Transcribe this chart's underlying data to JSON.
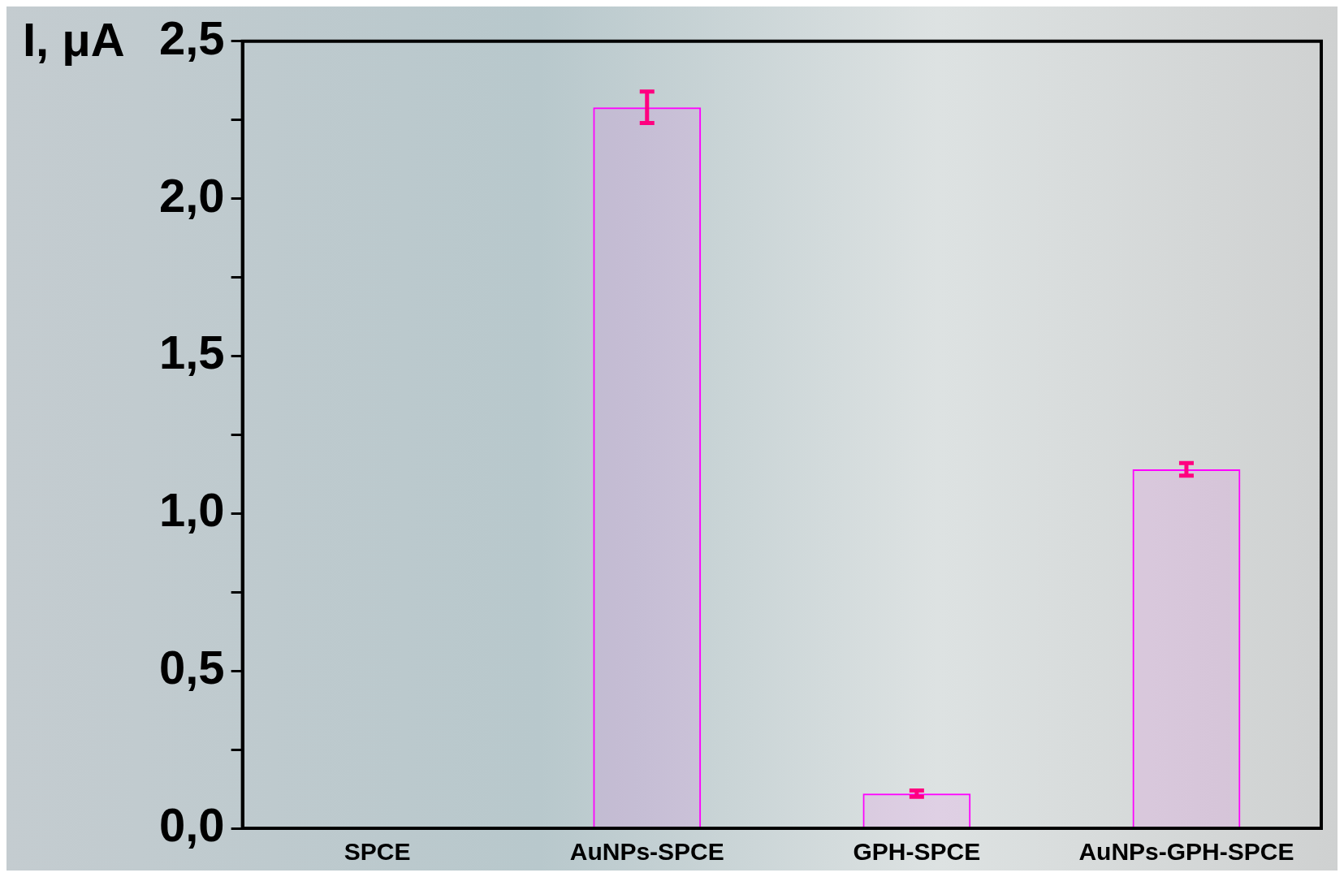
{
  "chart_data": {
    "type": "bar",
    "ylabel": "I, μA",
    "categories": [
      "SPCE",
      "AuNPs-SPCE",
      "GPH-SPCE",
      "AuNPs-GPH-SPCE"
    ],
    "values": [
      0,
      2.29,
      0.11,
      1.14
    ],
    "errors": [
      null,
      0.05,
      0.01,
      0.02
    ],
    "color": "#ff00ff",
    "ylim": [
      0,
      2.5
    ],
    "yticks": [
      {
        "value": 0,
        "label": "0,0"
      },
      {
        "value": 0.25,
        "label": null
      },
      {
        "value": 0.5,
        "label": "0,5"
      },
      {
        "value": 0.75,
        "label": null
      },
      {
        "value": 1,
        "label": "1,0"
      },
      {
        "value": 1.25,
        "label": null
      },
      {
        "value": 1.5,
        "label": "1,5"
      },
      {
        "value": 1.75,
        "label": null
      },
      {
        "value": 2,
        "label": "2,0"
      },
      {
        "value": 2.25,
        "label": null
      },
      {
        "value": 2.5,
        "label": "2,5"
      }
    ],
    "grid": false,
    "legend": false
  }
}
